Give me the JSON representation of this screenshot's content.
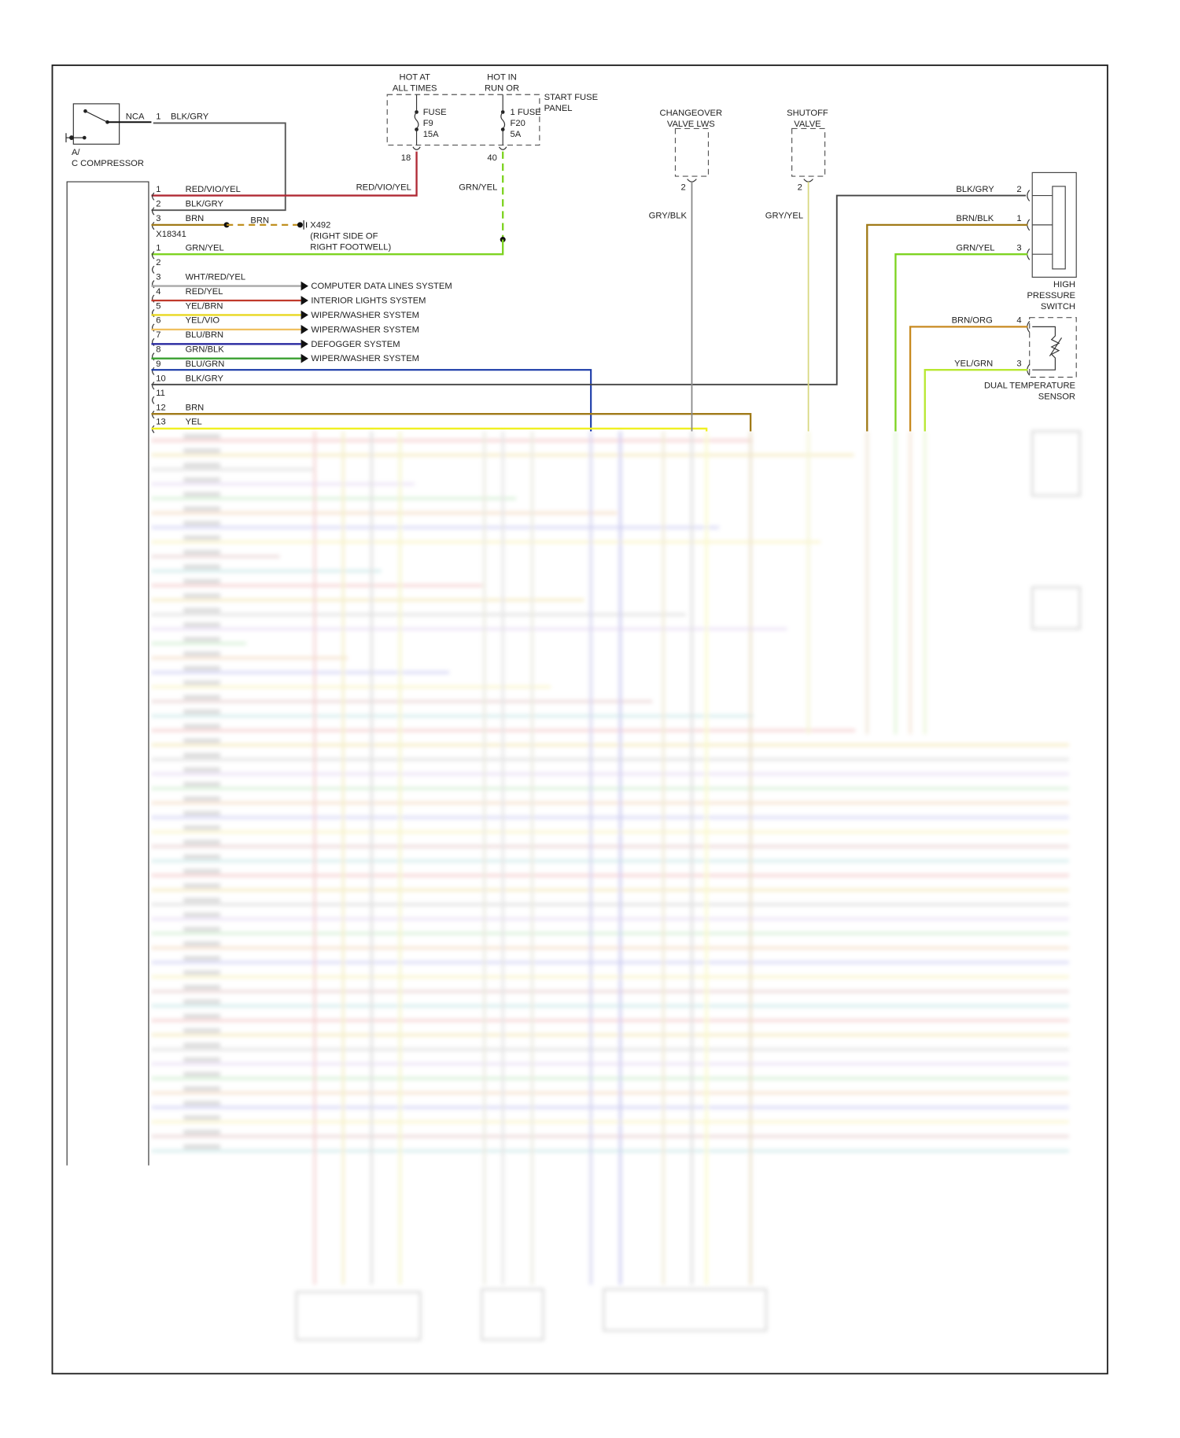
{
  "compressor": {
    "label_line1": "A/",
    "label_line2": "C COMPRESSOR",
    "terminal": "NCA",
    "pin": "1",
    "wire": "BLK/GRY"
  },
  "fuse_panel": {
    "hot_at_all_times": [
      "HOT AT",
      "ALL TIMES"
    ],
    "hot_in_run": [
      "HOT IN",
      "RUN OR"
    ],
    "panel_name": [
      "START FUSE",
      "PANEL"
    ],
    "fuse_f9": [
      "FUSE",
      "F9",
      "15A"
    ],
    "fuse_f20": [
      "1 FUSE",
      "F20",
      "5A"
    ],
    "pin_f9": "18",
    "pin_f20": "40",
    "wire_f9": "RED/VIO/YEL",
    "wire_f20": "GRN/YEL"
  },
  "connector_a": [
    {
      "pin": "1",
      "wire": "RED/VIO/YEL",
      "color": "#b02a35"
    },
    {
      "pin": "2",
      "wire": "BLK/GRY",
      "color": "#555555"
    },
    {
      "pin": "3",
      "wire": "BRN",
      "color": "#a07a18"
    }
  ],
  "connector_a_id": "X18341",
  "ground": {
    "wire": "BRN",
    "id": "X492",
    "location": [
      "(RIGHT SIDE OF",
      "RIGHT FOOTWELL)"
    ]
  },
  "connector_b": [
    {
      "pin": "1",
      "wire": "GRN/YEL",
      "color": "#7ed321",
      "dest": ""
    },
    {
      "pin": "2",
      "wire": "",
      "color": "",
      "dest": ""
    },
    {
      "pin": "3",
      "wire": "WHT/RED/YEL",
      "color": "#a8a8a8",
      "dest": "COMPUTER DATA LINES SYSTEM"
    },
    {
      "pin": "4",
      "wire": "RED/YEL",
      "color": "#c0392b",
      "dest": "INTERIOR LIGHTS SYSTEM"
    },
    {
      "pin": "5",
      "wire": "YEL/BRN",
      "color": "#e8d820",
      "dest": "WIPER/WASHER SYSTEM"
    },
    {
      "pin": "6",
      "wire": "YEL/VIO",
      "color": "#f0c060",
      "dest": "WIPER/WASHER SYSTEM"
    },
    {
      "pin": "7",
      "wire": "BLU/BRN",
      "color": "#2a2aa0",
      "dest": "DEFOGGER SYSTEM"
    },
    {
      "pin": "8",
      "wire": "GRN/BLK",
      "color": "#3aa030",
      "dest": "WIPER/WASHER SYSTEM"
    },
    {
      "pin": "9",
      "wire": "BLU/GRN",
      "color": "#1a3aa8",
      "dest": ""
    },
    {
      "pin": "10",
      "wire": "BLK/GRY",
      "color": "#444444",
      "dest": ""
    },
    {
      "pin": "11",
      "wire": "",
      "color": "",
      "dest": ""
    },
    {
      "pin": "12",
      "wire": "BRN",
      "color": "#a07a18",
      "dest": ""
    },
    {
      "pin": "13",
      "wire": "YEL",
      "color": "#f0f020",
      "dest": ""
    }
  ],
  "changeover_valve": {
    "name": [
      "CHANGEOVER",
      "VALVE LWS"
    ],
    "pin": "2",
    "wire": "GRY/BLK"
  },
  "shutoff_valve": {
    "name": [
      "SHUTOFF",
      "VALVE"
    ],
    "pin": "2",
    "wire": "GRY/YEL"
  },
  "high_pressure_switch": {
    "name": [
      "HIGH",
      "PRESSURE",
      "SWITCH"
    ],
    "pins": [
      {
        "pin": "2",
        "wire": "BLK/GRY"
      },
      {
        "pin": "1",
        "wire": "BRN/BLK"
      },
      {
        "pin": "3",
        "wire": "GRN/YEL"
      }
    ]
  },
  "dual_temperature_sensor": {
    "name": [
      "DUAL TEMPERATURE",
      "SENSOR"
    ],
    "pins": [
      {
        "pin": "4",
        "wire": "BRN/ORG"
      },
      {
        "pin": "3",
        "wire": "YEL/GRN"
      }
    ]
  }
}
